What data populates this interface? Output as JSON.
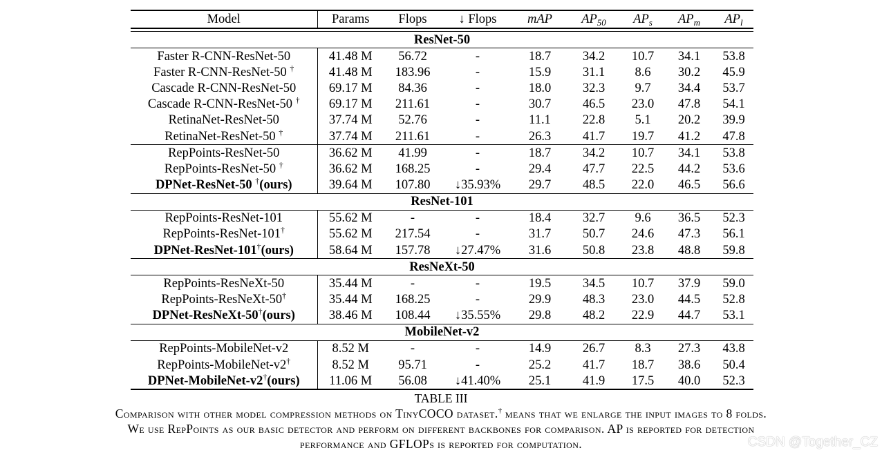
{
  "table": {
    "headers": {
      "model": "Model",
      "params": "Params",
      "flops": "Flops",
      "reduce_flops": "↓ Flops",
      "map": "mAP",
      "ap50_base": "AP",
      "ap50_sub": "50",
      "aps_base": "AP",
      "aps_sub": "s",
      "apm_base": "AP",
      "apm_sub": "m",
      "apl_base": "AP",
      "apl_sub": "l"
    },
    "sections": [
      {
        "title": "ResNet-50",
        "groups": [
          [
            {
              "model": "Faster R-CNN-ResNet-50",
              "dagger": "",
              "params": "41.48 M",
              "flops": "56.72",
              "reduce": "-",
              "map": "18.7",
              "ap50": "34.2",
              "aps": "10.7",
              "apm": "34.1",
              "apl": "53.8"
            },
            {
              "model": "Faster R-CNN-ResNet-50 ",
              "dagger": "†",
              "params": "41.48 M",
              "flops": "183.96",
              "reduce": "-",
              "map": "15.9",
              "ap50": "31.1",
              "aps": "8.6",
              "apm": "30.2",
              "apl": "45.9"
            },
            {
              "model": "Cascade R-CNN-ResNet-50",
              "dagger": "",
              "params": "69.17 M",
              "flops": "84.36",
              "reduce": "-",
              "map": "18.0",
              "ap50": "32.3",
              "aps": "9.7",
              "apm": "34.4",
              "apl": "53.7"
            },
            {
              "model": "Cascade R-CNN-ResNet-50 ",
              "dagger": "†",
              "params": "69.17 M",
              "flops": "211.61",
              "reduce": "-",
              "map": "30.7",
              "ap50": "46.5",
              "aps": "23.0",
              "apm": "47.8",
              "apl": "54.1"
            },
            {
              "model": "RetinaNet-ResNet-50",
              "dagger": "",
              "params": "37.74 M",
              "flops": "52.76",
              "reduce": "-",
              "map": "11.1",
              "ap50": "22.8",
              "aps": "5.1",
              "apm": "20.2",
              "apl": "39.9"
            },
            {
              "model": "RetinaNet-ResNet-50 ",
              "dagger": "†",
              "params": "37.74 M",
              "flops": "211.61",
              "reduce": "-",
              "map": "26.3",
              "ap50": "41.7",
              "aps": "19.7",
              "apm": "41.2",
              "apl": "47.8"
            }
          ],
          [
            {
              "model": "RepPoints-ResNet-50",
              "dagger": "",
              "params": "36.62 M",
              "flops": "41.99",
              "reduce": "-",
              "map": "18.7",
              "ap50": "34.2",
              "aps": "10.7",
              "apm": "34.1",
              "apl": "53.8"
            },
            {
              "model": "RepPoints-ResNet-50 ",
              "dagger": "†",
              "params": "36.62 M",
              "flops": "168.25",
              "reduce": "-",
              "map": "29.4",
              "ap50": "47.7",
              "aps": "22.5",
              "apm": "44.2",
              "apl": "53.6"
            },
            {
              "model": "DPNet-ResNet-50 ",
              "dagger": "†",
              "suffix": "(ours)",
              "ours": true,
              "params": "39.64 M",
              "flops": "107.80",
              "reduce": "↓35.93%",
              "map": "29.7",
              "ap50": "48.5",
              "aps": "22.0",
              "apm": "46.5",
              "apl": "56.6"
            }
          ]
        ]
      },
      {
        "title": "ResNet-101",
        "groups": [
          [
            {
              "model": "RepPoints-ResNet-101",
              "dagger": "",
              "params": "55.62 M",
              "flops": "-",
              "reduce": "-",
              "map": "18.4",
              "ap50": "32.7",
              "aps": "9.6",
              "apm": "36.5",
              "apl": "52.3"
            },
            {
              "model": "RepPoints-ResNet-101",
              "dagger": "†",
              "params": "55.62 M",
              "flops": "217.54",
              "reduce": "-",
              "map": "31.7",
              "ap50": "50.7",
              "aps": "24.6",
              "apm": "47.3",
              "apl": "56.1"
            },
            {
              "model": "DPNet-ResNet-101",
              "dagger": "†",
              "suffix": "(ours)",
              "ours": true,
              "params": "58.64 M",
              "flops": "157.78",
              "reduce": "↓27.47%",
              "map": "31.6",
              "ap50": "50.8",
              "aps": "23.8",
              "apm": "48.8",
              "apl": "59.8"
            }
          ]
        ]
      },
      {
        "title": "ResNeXt-50",
        "groups": [
          [
            {
              "model": "RepPoints-ResNeXt-50",
              "dagger": "",
              "params": "35.44 M",
              "flops": "-",
              "reduce": "-",
              "map": "19.5",
              "ap50": "34.5",
              "aps": "10.7",
              "apm": "37.9",
              "apl": "59.0"
            },
            {
              "model": "RepPoints-ResNeXt-50",
              "dagger": "†",
              "params": "35.44 M",
              "flops": "168.25",
              "reduce": "-",
              "map": "29.9",
              "ap50": "48.3",
              "aps": "23.0",
              "apm": "44.5",
              "apl": "52.8"
            },
            {
              "model": "DPNet-ResNeXt-50",
              "dagger": "†",
              "suffix": "(ours)",
              "ours": true,
              "params": "38.46 M",
              "flops": "108.44",
              "reduce": "↓35.55%",
              "map": "29.8",
              "ap50": "48.2",
              "aps": "22.9",
              "apm": "44.7",
              "apl": "53.1"
            }
          ]
        ]
      },
      {
        "title": "MobileNet-v2",
        "groups": [
          [
            {
              "model": "RepPoints-MobileNet-v2",
              "dagger": "",
              "params": "8.52 M",
              "flops": "-",
              "reduce": "-",
              "map": "14.9",
              "ap50": "26.7",
              "aps": "8.3",
              "apm": "27.3",
              "apl": "43.8"
            },
            {
              "model": "RepPoints-MobileNet-v2",
              "dagger": "†",
              "params": "8.52 M",
              "flops": "95.71",
              "reduce": "-",
              "map": "25.2",
              "ap50": "41.7",
              "aps": "18.7",
              "apm": "38.6",
              "apl": "50.4"
            },
            {
              "model": "DPNet-MobileNet-v2",
              "dagger": "†",
              "suffix": "(ours)",
              "ours": true,
              "params": "11.06 M",
              "flops": "56.08",
              "reduce": "↓41.40%",
              "map": "25.1",
              "ap50": "41.9",
              "aps": "17.5",
              "apm": "40.0",
              "apl": "52.3"
            }
          ]
        ]
      }
    ]
  },
  "caption": {
    "label": "TABLE III",
    "line1_a": "Comparison with other model compression methods on TinyCOCO dataset.",
    "line1_dagger": "†",
    "line1_b": " means that we enlarge the input images to 8 folds.",
    "line2": "We use RepPoints as our basic detector and perform on different backbones for comparison. AP is reported for detection",
    "line3": "performance and GFLOPs is reported for computation."
  },
  "watermark": "CSDN @Together_CZ"
}
